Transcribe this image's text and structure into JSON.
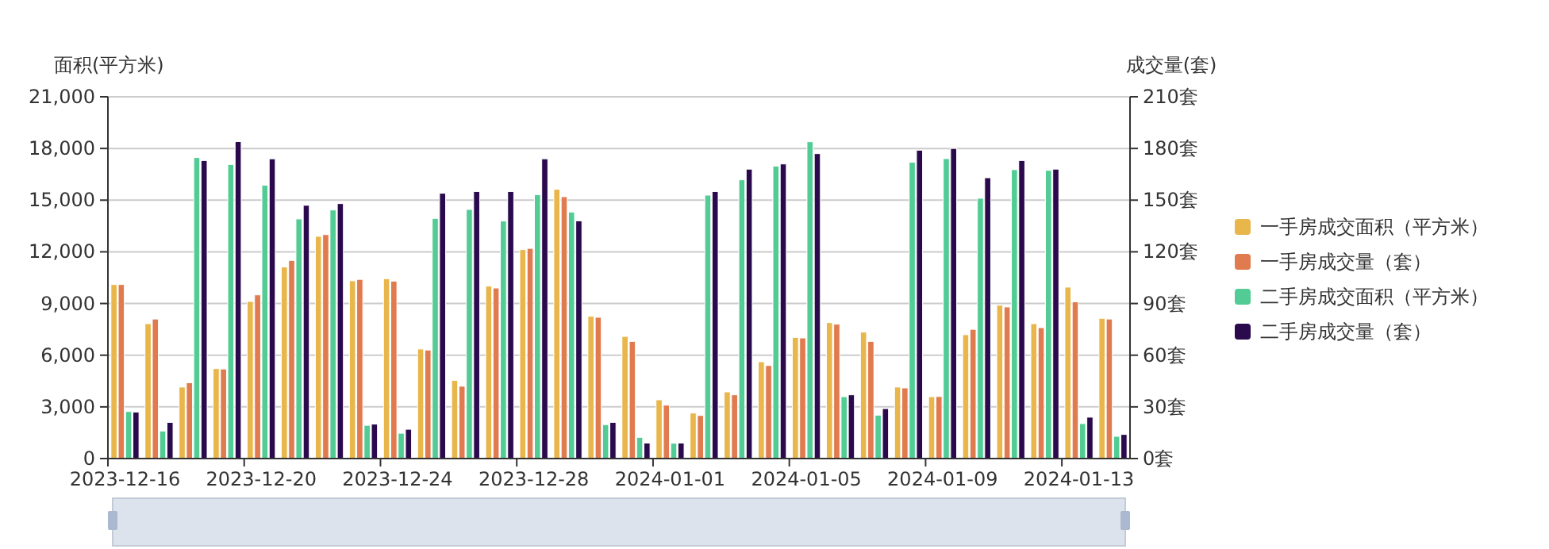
{
  "chart_data": {
    "type": "bar",
    "ylabel": "面积(平方米)",
    "y2label": "成交量(套)",
    "categories": [
      "2023-12-16",
      null,
      null,
      null,
      "2023-12-20",
      null,
      null,
      null,
      "2023-12-24",
      null,
      null,
      null,
      "2023-12-28",
      null,
      null,
      null,
      "2024-01-01",
      null,
      null,
      null,
      "2024-01-05",
      null,
      null,
      null,
      "2024-01-09",
      null,
      null,
      null,
      "2024-01-13",
      null
    ],
    "series": [
      {
        "name": "一手房成交面积（平方米）",
        "color": "#e8b64a",
        "values": [
          10100,
          7830,
          4150,
          5220,
          9120,
          11120,
          12900,
          10320,
          10440,
          6360,
          4540,
          10010,
          12130,
          15630,
          8260,
          7090,
          3410,
          2640,
          3870,
          5620,
          7030,
          7890,
          7340,
          4150,
          3590,
          7190,
          8900,
          7830,
          9950,
          8140
        ]
      },
      {
        "name": "一手房成交量（套）",
        "color": "#e07b4f",
        "axis": "y2",
        "values": [
          101,
          81,
          44,
          52,
          95,
          115,
          130,
          104,
          103,
          63,
          42,
          99,
          122,
          152,
          82,
          68,
          31,
          25,
          37,
          54,
          70,
          78,
          68,
          41,
          36,
          75,
          88,
          76,
          91,
          81
        ]
      },
      {
        "name": "二手房成交面积（平方米）",
        "color": "#52cc94",
        "values": [
          2730,
          1600,
          17470,
          17070,
          15870,
          13910,
          14430,
          1930,
          1470,
          13940,
          14460,
          13790,
          15320,
          14310,
          1970,
          1230,
          890,
          15290,
          16180,
          16980,
          18390,
          3590,
          2520,
          17200,
          17410,
          15110,
          16770,
          16730,
          2030,
          1290
        ]
      },
      {
        "name": "二手房成交量（套）",
        "color": "#2a0a4d",
        "axis": "y2",
        "values": [
          27,
          21,
          173,
          184,
          174,
          147,
          148,
          20,
          17,
          154,
          155,
          155,
          174,
          138,
          21,
          9,
          9,
          155,
          168,
          171,
          177,
          37,
          29,
          179,
          180,
          163,
          173,
          168,
          24,
          14
        ]
      }
    ],
    "ylim": [
      0,
      21000
    ],
    "yticks": [
      0,
      {
        "value": 3000,
        "label": "3,000"
      },
      {
        "value": 6000,
        "label": "6,000"
      },
      {
        "value": 9000,
        "label": "9,000"
      },
      {
        "value": 12000,
        "label": "12,000"
      },
      {
        "value": 15000,
        "label": "15,000"
      },
      {
        "value": 18000,
        "label": "18,000"
      },
      {
        "value": 21000,
        "label": "21,000"
      }
    ],
    "y2lim": [
      0,
      210
    ],
    "y2ticks": [
      {
        "value": 0,
        "label": "0套"
      },
      {
        "value": 30,
        "label": "30套"
      },
      {
        "value": 60,
        "label": "60套"
      },
      {
        "value": 90,
        "label": "90套"
      },
      {
        "value": 120,
        "label": "120套"
      },
      {
        "value": 150,
        "label": "150套"
      },
      {
        "value": 180,
        "label": "180套"
      },
      {
        "value": 210,
        "label": "210套"
      }
    ],
    "grid": "y",
    "legend": "right"
  }
}
